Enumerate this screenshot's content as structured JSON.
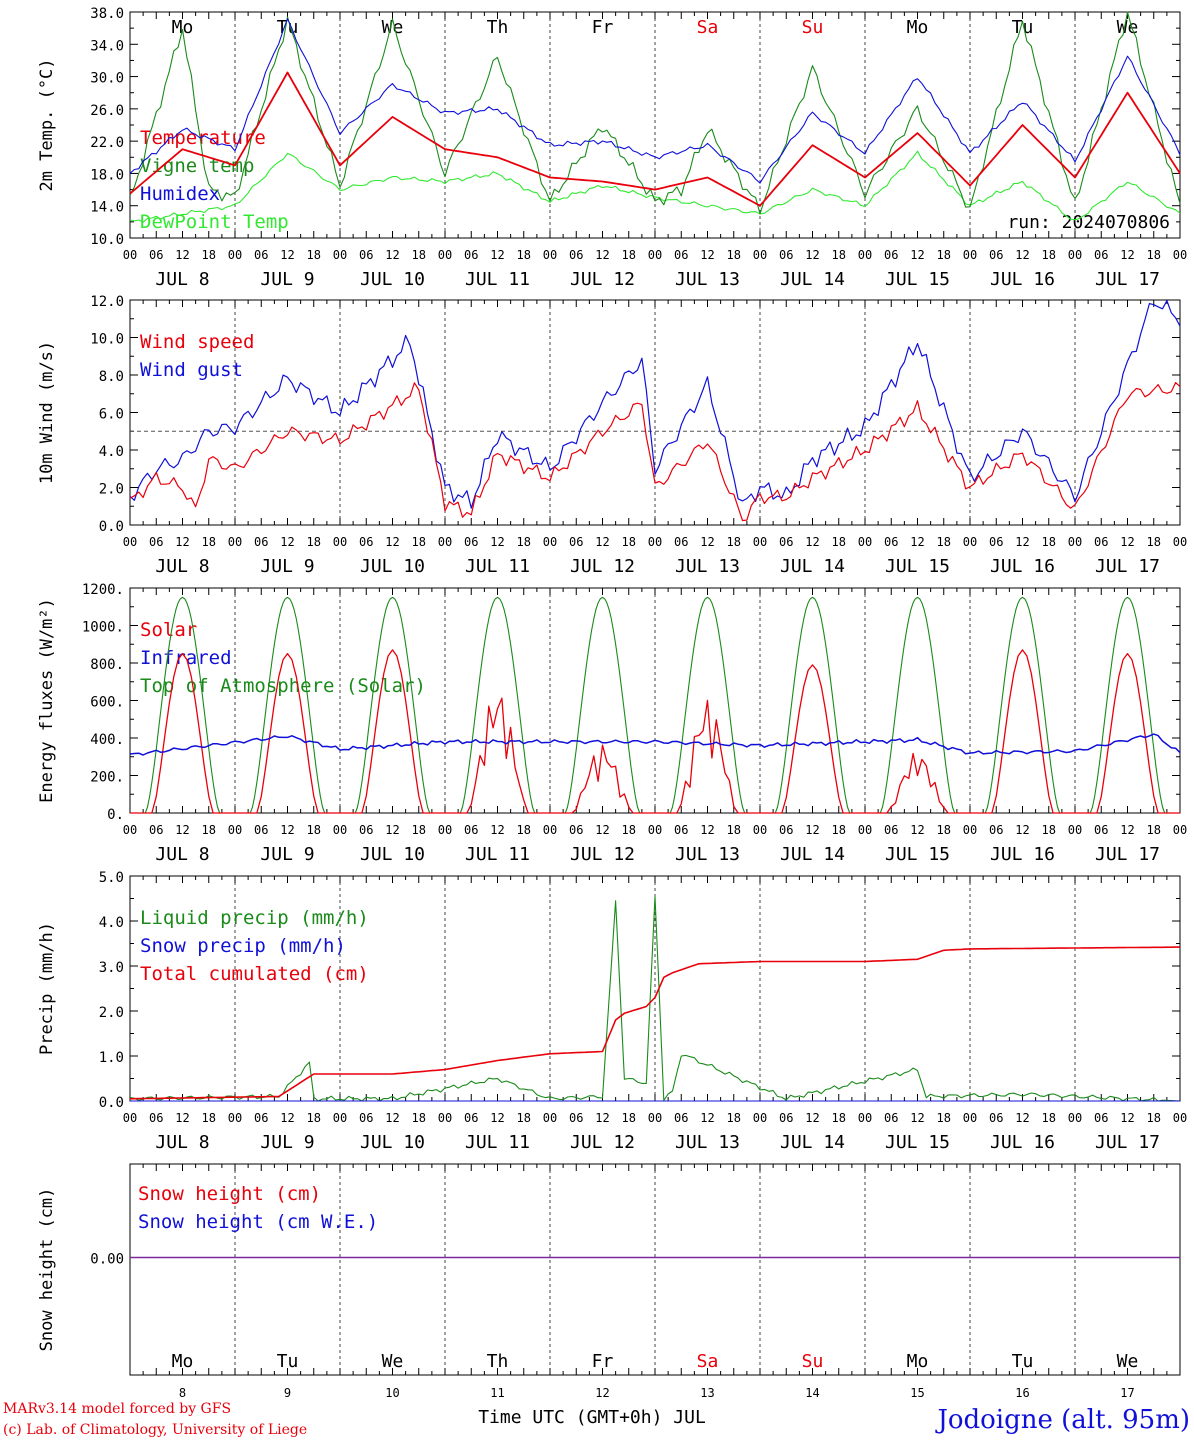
{
  "days": [
    {
      "name": "Mo",
      "weekend": false,
      "date": "JUL  8",
      "num": "8"
    },
    {
      "name": "Tu",
      "weekend": false,
      "date": "JUL  9",
      "num": "9"
    },
    {
      "name": "We",
      "weekend": false,
      "date": "JUL 10",
      "num": "10"
    },
    {
      "name": "Th",
      "weekend": false,
      "date": "JUL 11",
      "num": "11"
    },
    {
      "name": "Fr",
      "weekend": false,
      "date": "JUL 12",
      "num": "12"
    },
    {
      "name": "Sa",
      "weekend": true,
      "date": "JUL 13",
      "num": "13"
    },
    {
      "name": "Su",
      "weekend": true,
      "date": "JUL 14",
      "num": "14"
    },
    {
      "name": "Mo",
      "weekend": false,
      "date": "JUL 15",
      "num": "15"
    },
    {
      "name": "Tu",
      "weekend": false,
      "date": "JUL 16",
      "num": "16"
    },
    {
      "name": "We",
      "weekend": false,
      "date": "JUL 17",
      "num": "17"
    }
  ],
  "hour_labels": [
    "00",
    "06",
    "12",
    "18"
  ],
  "colors": {
    "red": "#e8000b",
    "green": "#1a8a1a",
    "blue": "#1010d8",
    "light_green": "#33e833",
    "purple": "#7a2a9a"
  },
  "footer": {
    "model_line1": "MARv3.14 model forced by GFS",
    "model_line2": "(c) Lab. of Climatology, University of Liege",
    "time_axis": "Time UTC (GMT+0h) JUL",
    "station": "Jodoigne (alt. 95m)"
  },
  "chart_data": [
    {
      "type": "line",
      "ylabel": "2m Temp. (°C)",
      "ylim": [
        10,
        38
      ],
      "yticks": [
        "10.0",
        "14.0",
        "18.0",
        "22.0",
        "26.0",
        "30.0",
        "34.0",
        "38.0"
      ],
      "annotation": "run: 2024070806",
      "grid": "vertical dashed lines at 00 UTC",
      "series": [
        {
          "name": "Temperature",
          "color": "red",
          "x": [
            0,
            12,
            18,
            24,
            36,
            48,
            60,
            72,
            84,
            96,
            108,
            120,
            132,
            144,
            156,
            168,
            180,
            192,
            204,
            216,
            228,
            240
          ],
          "y": [
            15.5,
            21.0,
            20.0,
            19.0,
            30.5,
            19.0,
            25.0,
            21.0,
            20.0,
            17.5,
            17.0,
            16.0,
            17.5,
            14.0,
            21.5,
            17.5,
            23.0,
            16.5,
            24.0,
            17.5,
            28.0,
            18.0
          ]
        },
        {
          "name": "Vigne temp",
          "color": "green",
          "x": [
            0,
            12,
            18,
            24,
            36,
            48,
            60,
            72,
            84,
            96,
            108,
            120,
            126,
            132,
            144,
            156,
            168,
            180,
            192,
            204,
            216,
            228,
            240
          ],
          "y": [
            14.5,
            36.0,
            16.0,
            15.0,
            37.0,
            16.5,
            36.5,
            18.0,
            32.5,
            14.5,
            24.0,
            14.5,
            16.0,
            23.5,
            13.5,
            31.0,
            15.5,
            26.0,
            13.5,
            37.0,
            14.0,
            38.0,
            14.0
          ]
        },
        {
          "name": "Humidex",
          "color": "blue",
          "x": [
            0,
            12,
            24,
            36,
            48,
            60,
            72,
            84,
            96,
            108,
            120,
            132,
            144,
            156,
            168,
            180,
            192,
            204,
            216,
            228,
            240
          ],
          "y": [
            18.0,
            23.5,
            21.0,
            37.0,
            23.0,
            29.0,
            25.5,
            26.0,
            21.5,
            22.0,
            20.0,
            21.5,
            17.0,
            25.5,
            20.5,
            30.0,
            20.5,
            27.0,
            19.5,
            32.5,
            20.5
          ]
        },
        {
          "name": "DewPoint Temp",
          "color": "light_green",
          "x": [
            0,
            12,
            24,
            36,
            48,
            60,
            72,
            84,
            96,
            108,
            120,
            132,
            144,
            156,
            168,
            180,
            192,
            204,
            216,
            228,
            240
          ],
          "y": [
            12.0,
            13.0,
            14.0,
            20.5,
            16.0,
            17.5,
            17.0,
            18.0,
            14.5,
            16.5,
            15.0,
            14.0,
            13.0,
            16.0,
            14.0,
            20.5,
            14.0,
            17.0,
            12.0,
            17.0,
            13.0
          ]
        }
      ]
    },
    {
      "type": "line",
      "ylabel": "10m Wind (m/s)",
      "ylim": [
        0,
        12
      ],
      "yticks": [
        "0.0",
        "2.0",
        "4.0",
        "6.0",
        "8.0",
        "10.0",
        "12.0"
      ],
      "reference_line": 5.0,
      "series": [
        {
          "name": "Wind speed",
          "color": "red",
          "x": [
            0,
            6,
            12,
            15,
            18,
            24,
            36,
            48,
            66,
            72,
            78,
            84,
            96,
            108,
            117,
            120,
            132,
            140,
            144,
            150,
            156,
            168,
            180,
            192,
            204,
            216,
            228,
            240
          ],
          "y": [
            1.2,
            2.5,
            2.0,
            0.8,
            3.5,
            3.0,
            5.0,
            4.5,
            7.3,
            1.2,
            0.6,
            3.8,
            2.5,
            5.0,
            6.5,
            2.0,
            4.5,
            0.3,
            1.5,
            1.5,
            2.5,
            4.0,
            6.2,
            2.0,
            3.8,
            0.8,
            7.0,
            7.3
          ]
        },
        {
          "name": "Wind gust",
          "color": "blue",
          "x": [
            0,
            6,
            12,
            18,
            24,
            36,
            48,
            64,
            72,
            78,
            84,
            96,
            108,
            117,
            120,
            132,
            140,
            144,
            150,
            156,
            168,
            180,
            192,
            204,
            216,
            228,
            234,
            240
          ],
          "y": [
            1.5,
            3.0,
            3.5,
            5.0,
            5.2,
            7.8,
            6.0,
            9.8,
            2.0,
            1.2,
            4.8,
            3.0,
            6.5,
            8.8,
            3.0,
            7.5,
            1.0,
            2.0,
            1.5,
            3.5,
            5.2,
            9.8,
            2.5,
            5.0,
            1.5,
            8.5,
            12.0,
            11.0
          ]
        }
      ]
    },
    {
      "type": "line",
      "ylabel": "Energy fluxes (W/m²)",
      "ylim": [
        0,
        1200
      ],
      "yticks": [
        "0.",
        "200.",
        "400.",
        "600.",
        "800.",
        "1000.",
        "1200."
      ],
      "series": [
        {
          "name": "Solar",
          "color": "red",
          "daily_peaks": [
            850,
            850,
            870,
            670,
            370,
            610,
            790,
            330,
            870,
            850
          ]
        },
        {
          "name": "Infrared",
          "color": "blue",
          "x": [
            0,
            36,
            48,
            72,
            120,
            144,
            180,
            192,
            216,
            234,
            240
          ],
          "y": [
            310,
            410,
            340,
            380,
            380,
            360,
            390,
            320,
            330,
            420,
            320
          ]
        },
        {
          "name": "Top of Atmosphere (Solar)",
          "color": "green",
          "daily_peaks": [
            1150,
            1150,
            1150,
            1150,
            1150,
            1150,
            1150,
            1150,
            1150,
            1150
          ]
        }
      ]
    },
    {
      "type": "line",
      "ylabel": "Precip (mm/h)",
      "ylim": [
        0,
        5
      ],
      "yticks": [
        "0.0",
        "1.0",
        "2.0",
        "3.0",
        "4.0",
        "5.0"
      ],
      "series": [
        {
          "name": "Liquid precip (mm/h)",
          "color": "green",
          "x": [
            0,
            34,
            41,
            42,
            60,
            84,
            96,
            108,
            111,
            113,
            118,
            120,
            122,
            124,
            126,
            150,
            180,
            182,
            205,
            240
          ],
          "y": [
            0.05,
            0.1,
            0.85,
            0.05,
            0.05,
            0.5,
            0.05,
            0.1,
            4.45,
            0.5,
            0.4,
            4.55,
            0.05,
            0.2,
            1.05,
            0.05,
            0.7,
            0.1,
            0.15,
            0.0
          ]
        },
        {
          "name": "Snow precip (mm/h)",
          "color": "blue",
          "x": [
            0,
            240
          ],
          "y": [
            0,
            0
          ]
        },
        {
          "name": "Total cumulated (cm)",
          "color": "red",
          "x": [
            0,
            34,
            42,
            60,
            72,
            84,
            96,
            108,
            111,
            113,
            118,
            120,
            122,
            124,
            130,
            144,
            168,
            180,
            186,
            192,
            216,
            240
          ],
          "y": [
            0.05,
            0.1,
            0.6,
            0.6,
            0.7,
            0.9,
            1.05,
            1.1,
            1.8,
            1.95,
            2.1,
            2.3,
            2.75,
            2.85,
            3.05,
            3.1,
            3.1,
            3.15,
            3.35,
            3.38,
            3.4,
            3.42
          ]
        }
      ]
    },
    {
      "type": "line",
      "ylabel": "Snow height (cm)",
      "ytick": "0.00",
      "series": [
        {
          "name": "Snow height (cm)",
          "color": "red",
          "x": [
            0,
            240
          ],
          "y": [
            0,
            0
          ]
        },
        {
          "name": "Snow height (cm W.E.)",
          "color": "blue",
          "x": [
            0,
            240
          ],
          "y": [
            0,
            0
          ]
        }
      ]
    }
  ]
}
